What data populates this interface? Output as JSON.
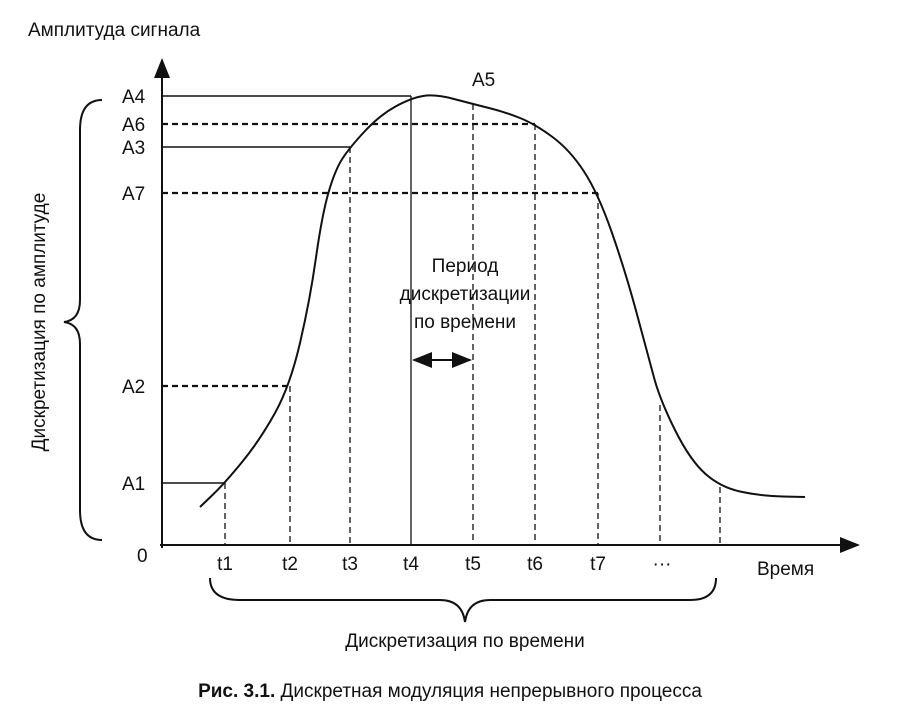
{
  "y_axis_title": "Амплитуда сигнала",
  "x_axis_title": "Время",
  "origin_label": "0",
  "amplitude_levels": [
    "A4",
    "A6",
    "A3",
    "A7",
    "A2",
    "A1"
  ],
  "peak_label": "A5",
  "time_labels": [
    "t1",
    "t2",
    "t3",
    "t4",
    "t5",
    "t6",
    "t7",
    "···"
  ],
  "period_label": [
    "Период",
    "дискретизации",
    "по времени"
  ],
  "amplitude_sampling_label": "Дискретизация по амплитуде",
  "time_sampling_label": "Дискретизация по времени",
  "caption": {
    "number": "Рис. 3.1.",
    "text": " Дискретная модуляция непрерывного процесса"
  }
}
